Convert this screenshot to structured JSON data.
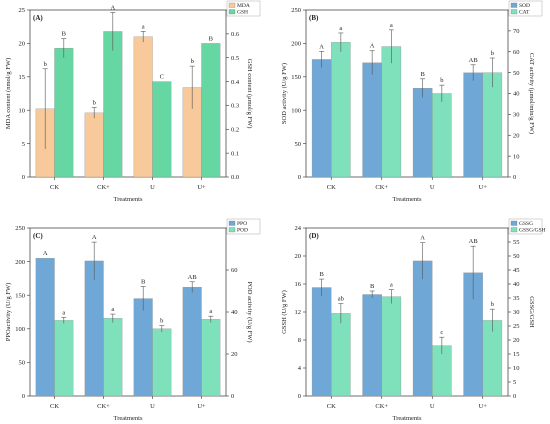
{
  "colors": {
    "orange": "#f8c99a",
    "green": "#66d6a2",
    "blue": "#6fa8d6",
    "teal": "#7fe0bc"
  },
  "chart_data": [
    {
      "type": "bar",
      "panel": "(A)",
      "categories": [
        "CK",
        "CK+",
        "U",
        "U+"
      ],
      "xlabel": "Treatments",
      "ylabel": "MDA content (nmol/g FW)",
      "y2label": "GSH content (μmol/g FW)",
      "ylim": [
        0,
        25
      ],
      "yticks": [
        0,
        5,
        10,
        15,
        20,
        25
      ],
      "y2lim": [
        0,
        0.7
      ],
      "y2ticks": [
        "0.0",
        "0.1",
        "0.2",
        "0.3",
        "0.4",
        "0.5",
        "0.6",
        "0.7"
      ],
      "legend_position": "top-right",
      "series": [
        {
          "name": "MDA",
          "axis": "left",
          "color": "#f8c99a",
          "values": [
            10.2,
            9.6,
            21.0,
            13.4
          ],
          "errors": [
            6.0,
            0.8,
            0.8,
            3.2
          ],
          "labels": [
            "b",
            "b",
            "a",
            "b"
          ]
        },
        {
          "name": "GSH",
          "axis": "right",
          "color": "#66d6a2",
          "values": [
            0.54,
            0.61,
            0.4,
            0.56
          ],
          "errors": [
            0.04,
            0.08,
            0.0,
            0.0
          ],
          "labels": [
            "B",
            "A",
            "C",
            "B"
          ]
        }
      ]
    },
    {
      "type": "bar",
      "panel": "(B)",
      "categories": [
        "CK",
        "CK+",
        "U",
        "U+"
      ],
      "xlabel": "Treatments",
      "ylabel": "SOD activity (U/g FW)",
      "y2label": "CAT activity (μmol/min/g FW)",
      "ylim": [
        0,
        250
      ],
      "yticks": [
        0,
        50,
        100,
        150,
        200,
        250
      ],
      "y2lim": [
        0,
        80
      ],
      "y2ticks": [
        0,
        10,
        20,
        30,
        40,
        50,
        60,
        70,
        80
      ],
      "legend_position": "top-right",
      "series": [
        {
          "name": "SOD",
          "axis": "left",
          "color": "#6fa8d6",
          "values": [
            176,
            171,
            133,
            156
          ],
          "errors": [
            12,
            18,
            14,
            12
          ],
          "labels": [
            "A",
            "A",
            "B",
            "AB"
          ]
        },
        {
          "name": "CAT",
          "axis": "right",
          "color": "#7fe0bc",
          "values": [
            64.5,
            62.5,
            40,
            50
          ],
          "errors": [
            4.5,
            8,
            4,
            7
          ],
          "labels": [
            "a",
            "a",
            "b",
            "b"
          ]
        }
      ]
    },
    {
      "type": "bar",
      "panel": "(C)",
      "categories": [
        "CK",
        "CK+",
        "U",
        "U+"
      ],
      "xlabel": "Treatments",
      "ylabel": "PPOactivity (U/g FW)",
      "y2label": "POD activity (U/g FW)",
      "ylim": [
        0,
        250
      ],
      "yticks": [
        0,
        50,
        100,
        150,
        200,
        250
      ],
      "y2lim": [
        0,
        80
      ],
      "y2ticks": [
        0,
        20,
        40,
        60,
        80
      ],
      "legend_position": "top-right",
      "series": [
        {
          "name": "PPO",
          "axis": "left",
          "color": "#6fa8d6",
          "values": [
            205,
            201,
            145,
            162
          ],
          "errors": [
            0,
            28,
            18,
            8
          ],
          "labels": [
            "A",
            "A",
            "B",
            "AB"
          ]
        },
        {
          "name": "POD",
          "axis": "right",
          "color": "#7fe0bc",
          "values": [
            36,
            37,
            32,
            36.5
          ],
          "errors": [
            1.5,
            2,
            1.5,
            1.5
          ],
          "labels": [
            "a",
            "a",
            "b",
            "a"
          ]
        }
      ]
    },
    {
      "type": "bar",
      "panel": "(D)",
      "categories": [
        "CK",
        "CK+",
        "U",
        "U+"
      ],
      "xlabel": "Treatments",
      "ylabel": "GSSH (U/g FW)",
      "y2label": "GSSG/GSH",
      "ylim": [
        0,
        24
      ],
      "yticks": [
        0,
        4,
        8,
        12,
        16,
        20,
        24
      ],
      "y2lim": [
        0,
        60
      ],
      "y2ticks": [
        0,
        5,
        10,
        15,
        20,
        25,
        30,
        35,
        40,
        45,
        50,
        55,
        60
      ],
      "legend_position": "top-right",
      "series": [
        {
          "name": "GSSG",
          "axis": "left",
          "color": "#6fa8d6",
          "values": [
            15.5,
            14.5,
            19.3,
            17.6
          ],
          "errors": [
            1.2,
            0.5,
            2.6,
            3.8
          ],
          "labels": [
            "B",
            "B",
            "A",
            "AB"
          ]
        },
        {
          "name": "GSSG/GSH",
          "axis": "right",
          "color": "#7fe0bc",
          "values": [
            29.5,
            35.5,
            18,
            27
          ],
          "errors": [
            3.5,
            2.5,
            3,
            4
          ],
          "labels": [
            "ab",
            "a",
            "c",
            "b"
          ]
        }
      ]
    }
  ]
}
